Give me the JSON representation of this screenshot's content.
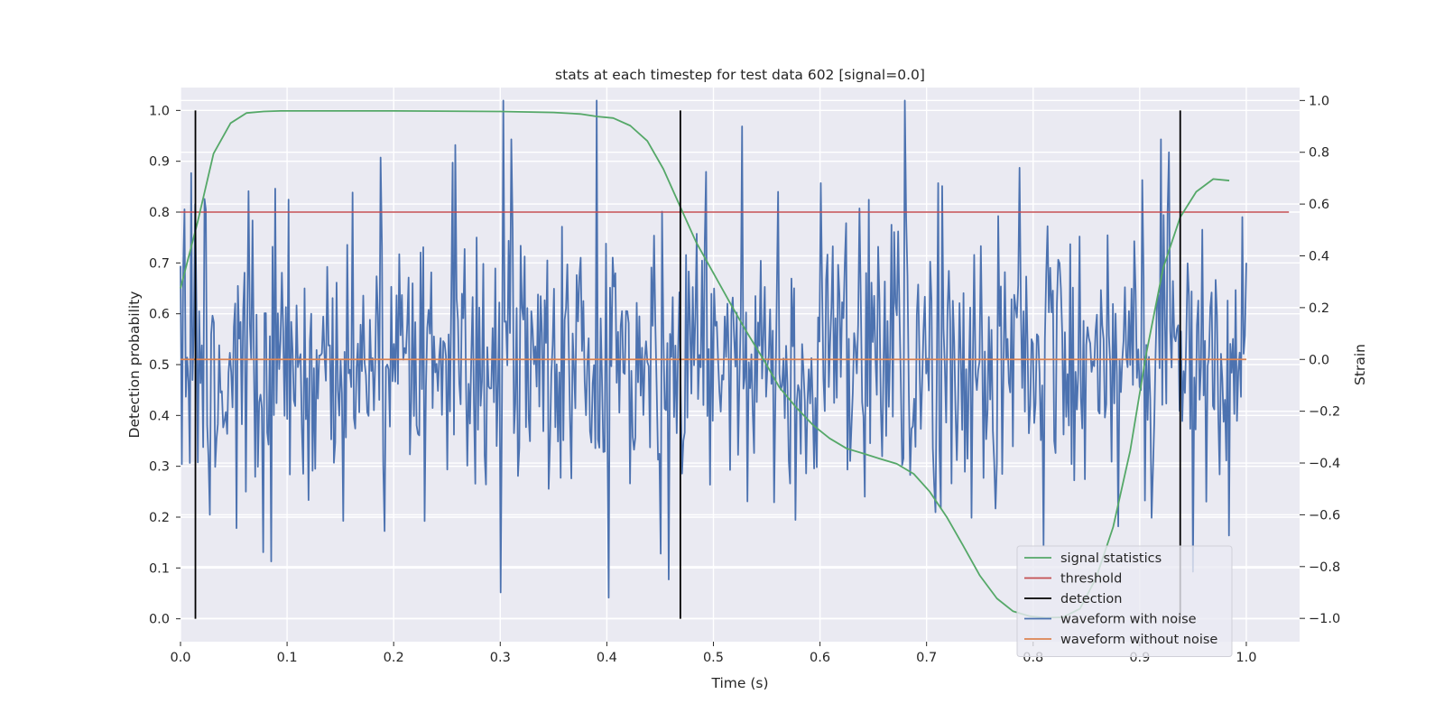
{
  "chart_data": {
    "type": "line",
    "title": "stats at each timestep for test data 602 [signal=0.0]",
    "xlabel": "Time (s)",
    "ylabel": "Detection probability",
    "y2label": "Strain",
    "xlim": [
      0.0,
      1.05
    ],
    "ylim": [
      -0.045,
      1.045
    ],
    "y2lim": [
      -1.09,
      1.05
    ],
    "x_ticks": [
      0.0,
      0.1,
      0.2,
      0.3,
      0.4,
      0.5,
      0.6,
      0.7,
      0.8,
      0.9,
      1.0
    ],
    "x_tick_labels": [
      "0.0",
      "0.1",
      "0.2",
      "0.3",
      "0.4",
      "0.5",
      "0.6",
      "0.7",
      "0.8",
      "0.9",
      "1.0"
    ],
    "y_ticks": [
      0.0,
      0.1,
      0.2,
      0.3,
      0.4,
      0.5,
      0.6,
      0.7,
      0.8,
      0.9,
      1.0
    ],
    "y_tick_labels": [
      "0.0",
      "0.1",
      "0.2",
      "0.3",
      "0.4",
      "0.5",
      "0.6",
      "0.7",
      "0.8",
      "0.9",
      "1.0"
    ],
    "y2_ticks": [
      -1.0,
      -0.8,
      -0.6,
      -0.4,
      -0.2,
      0.0,
      0.2,
      0.4,
      0.6,
      0.8,
      1.0
    ],
    "y2_tick_labels": [
      "−1.0",
      "−0.8",
      "−0.6",
      "−0.4",
      "−0.2",
      "0.0",
      "0.2",
      "0.4",
      "0.6",
      "0.8",
      "1.0"
    ],
    "grid": true,
    "legend_position": "lower right",
    "colors": {
      "background": "#eaeaf2",
      "grid": "#ffffff",
      "signal_statistics": "#55a868",
      "threshold": "#c44e52",
      "detection": "#000000",
      "waveform_with_noise": "#4c72b0",
      "waveform_without_noise": "#dd8452"
    },
    "legend": [
      {
        "label": "signal statistics",
        "color": "#55a868"
      },
      {
        "label": "threshold",
        "color": "#c44e52"
      },
      {
        "label": "detection",
        "color": "#000000"
      },
      {
        "label": "waveform with noise",
        "color": "#4c72b0"
      },
      {
        "label": "waveform without noise",
        "color": "#dd8452"
      }
    ],
    "signal_statistics": {
      "x": [
        0.0,
        0.016,
        0.031,
        0.047,
        0.062,
        0.078,
        0.094,
        0.109,
        0.125,
        0.2,
        0.3,
        0.35,
        0.375,
        0.391,
        0.406,
        0.422,
        0.438,
        0.453,
        0.469,
        0.484,
        0.5,
        0.516,
        0.531,
        0.547,
        0.562,
        0.578,
        0.594,
        0.609,
        0.625,
        0.641,
        0.656,
        0.672,
        0.688,
        0.703,
        0.719,
        0.734,
        0.75,
        0.766,
        0.781,
        0.797,
        0.812,
        0.828,
        0.844,
        0.859,
        0.875,
        0.891,
        0.906,
        0.922,
        0.938,
        0.953,
        0.969,
        0.984
      ],
      "y": [
        0.65,
        0.78,
        0.915,
        0.975,
        0.995,
        0.998,
        0.999,
        0.999,
        0.999,
        0.999,
        0.998,
        0.996,
        0.993,
        0.988,
        0.985,
        0.97,
        0.94,
        0.885,
        0.81,
        0.74,
        0.68,
        0.62,
        0.565,
        0.51,
        0.455,
        0.415,
        0.38,
        0.355,
        0.335,
        0.325,
        0.315,
        0.305,
        0.285,
        0.25,
        0.2,
        0.145,
        0.085,
        0.04,
        0.015,
        0.005,
        0.002,
        0.003,
        0.02,
        0.08,
        0.18,
        0.33,
        0.52,
        0.69,
        0.79,
        0.84,
        0.865,
        0.862
      ]
    },
    "threshold": {
      "x": [
        0.0,
        1.04
      ],
      "y": [
        0.8,
        0.8
      ]
    },
    "detections": {
      "x": [
        0.014,
        0.469,
        0.938
      ],
      "y_range": [
        0.0,
        1.0
      ]
    },
    "waveform_without_noise": {
      "x": [
        0.0,
        1.0
      ],
      "strain": [
        0.0,
        0.0
      ]
    },
    "waveform_with_noise": {
      "x_range": [
        0.0,
        1.0
      ],
      "n_points": 800,
      "strain_range": [
        -0.98,
        1.0
      ],
      "strain_std": 0.26,
      "strain_extremes": [
        {
          "x": 0.004,
          "strain": 0.58
        },
        {
          "x": 0.009,
          "strain": -0.4
        },
        {
          "x": 0.022,
          "strain": 0.62
        },
        {
          "x": 0.027,
          "strain": -0.6
        },
        {
          "x": 0.064,
          "strain": 0.65
        },
        {
          "x": 0.085,
          "strain": -0.78
        },
        {
          "x": 0.188,
          "strain": 0.78
        },
        {
          "x": 0.255,
          "strain": 0.76
        },
        {
          "x": 0.3,
          "strain": -0.9
        },
        {
          "x": 0.31,
          "strain": 0.85
        },
        {
          "x": 0.39,
          "strain": 1.0
        },
        {
          "x": 0.402,
          "strain": -0.92
        },
        {
          "x": 0.45,
          "strain": -0.75
        },
        {
          "x": 0.458,
          "strain": -0.85
        },
        {
          "x": 0.527,
          "strain": 0.9
        },
        {
          "x": 0.577,
          "strain": -0.62
        },
        {
          "x": 0.68,
          "strain": 1.0
        },
        {
          "x": 0.787,
          "strain": 0.74
        },
        {
          "x": 0.81,
          "strain": -0.72
        },
        {
          "x": 0.92,
          "strain": 0.85
        },
        {
          "x": 0.928,
          "strain": 0.8
        },
        {
          "x": 0.95,
          "strain": -0.82
        },
        {
          "x": 0.984,
          "strain": -0.68
        }
      ]
    }
  }
}
